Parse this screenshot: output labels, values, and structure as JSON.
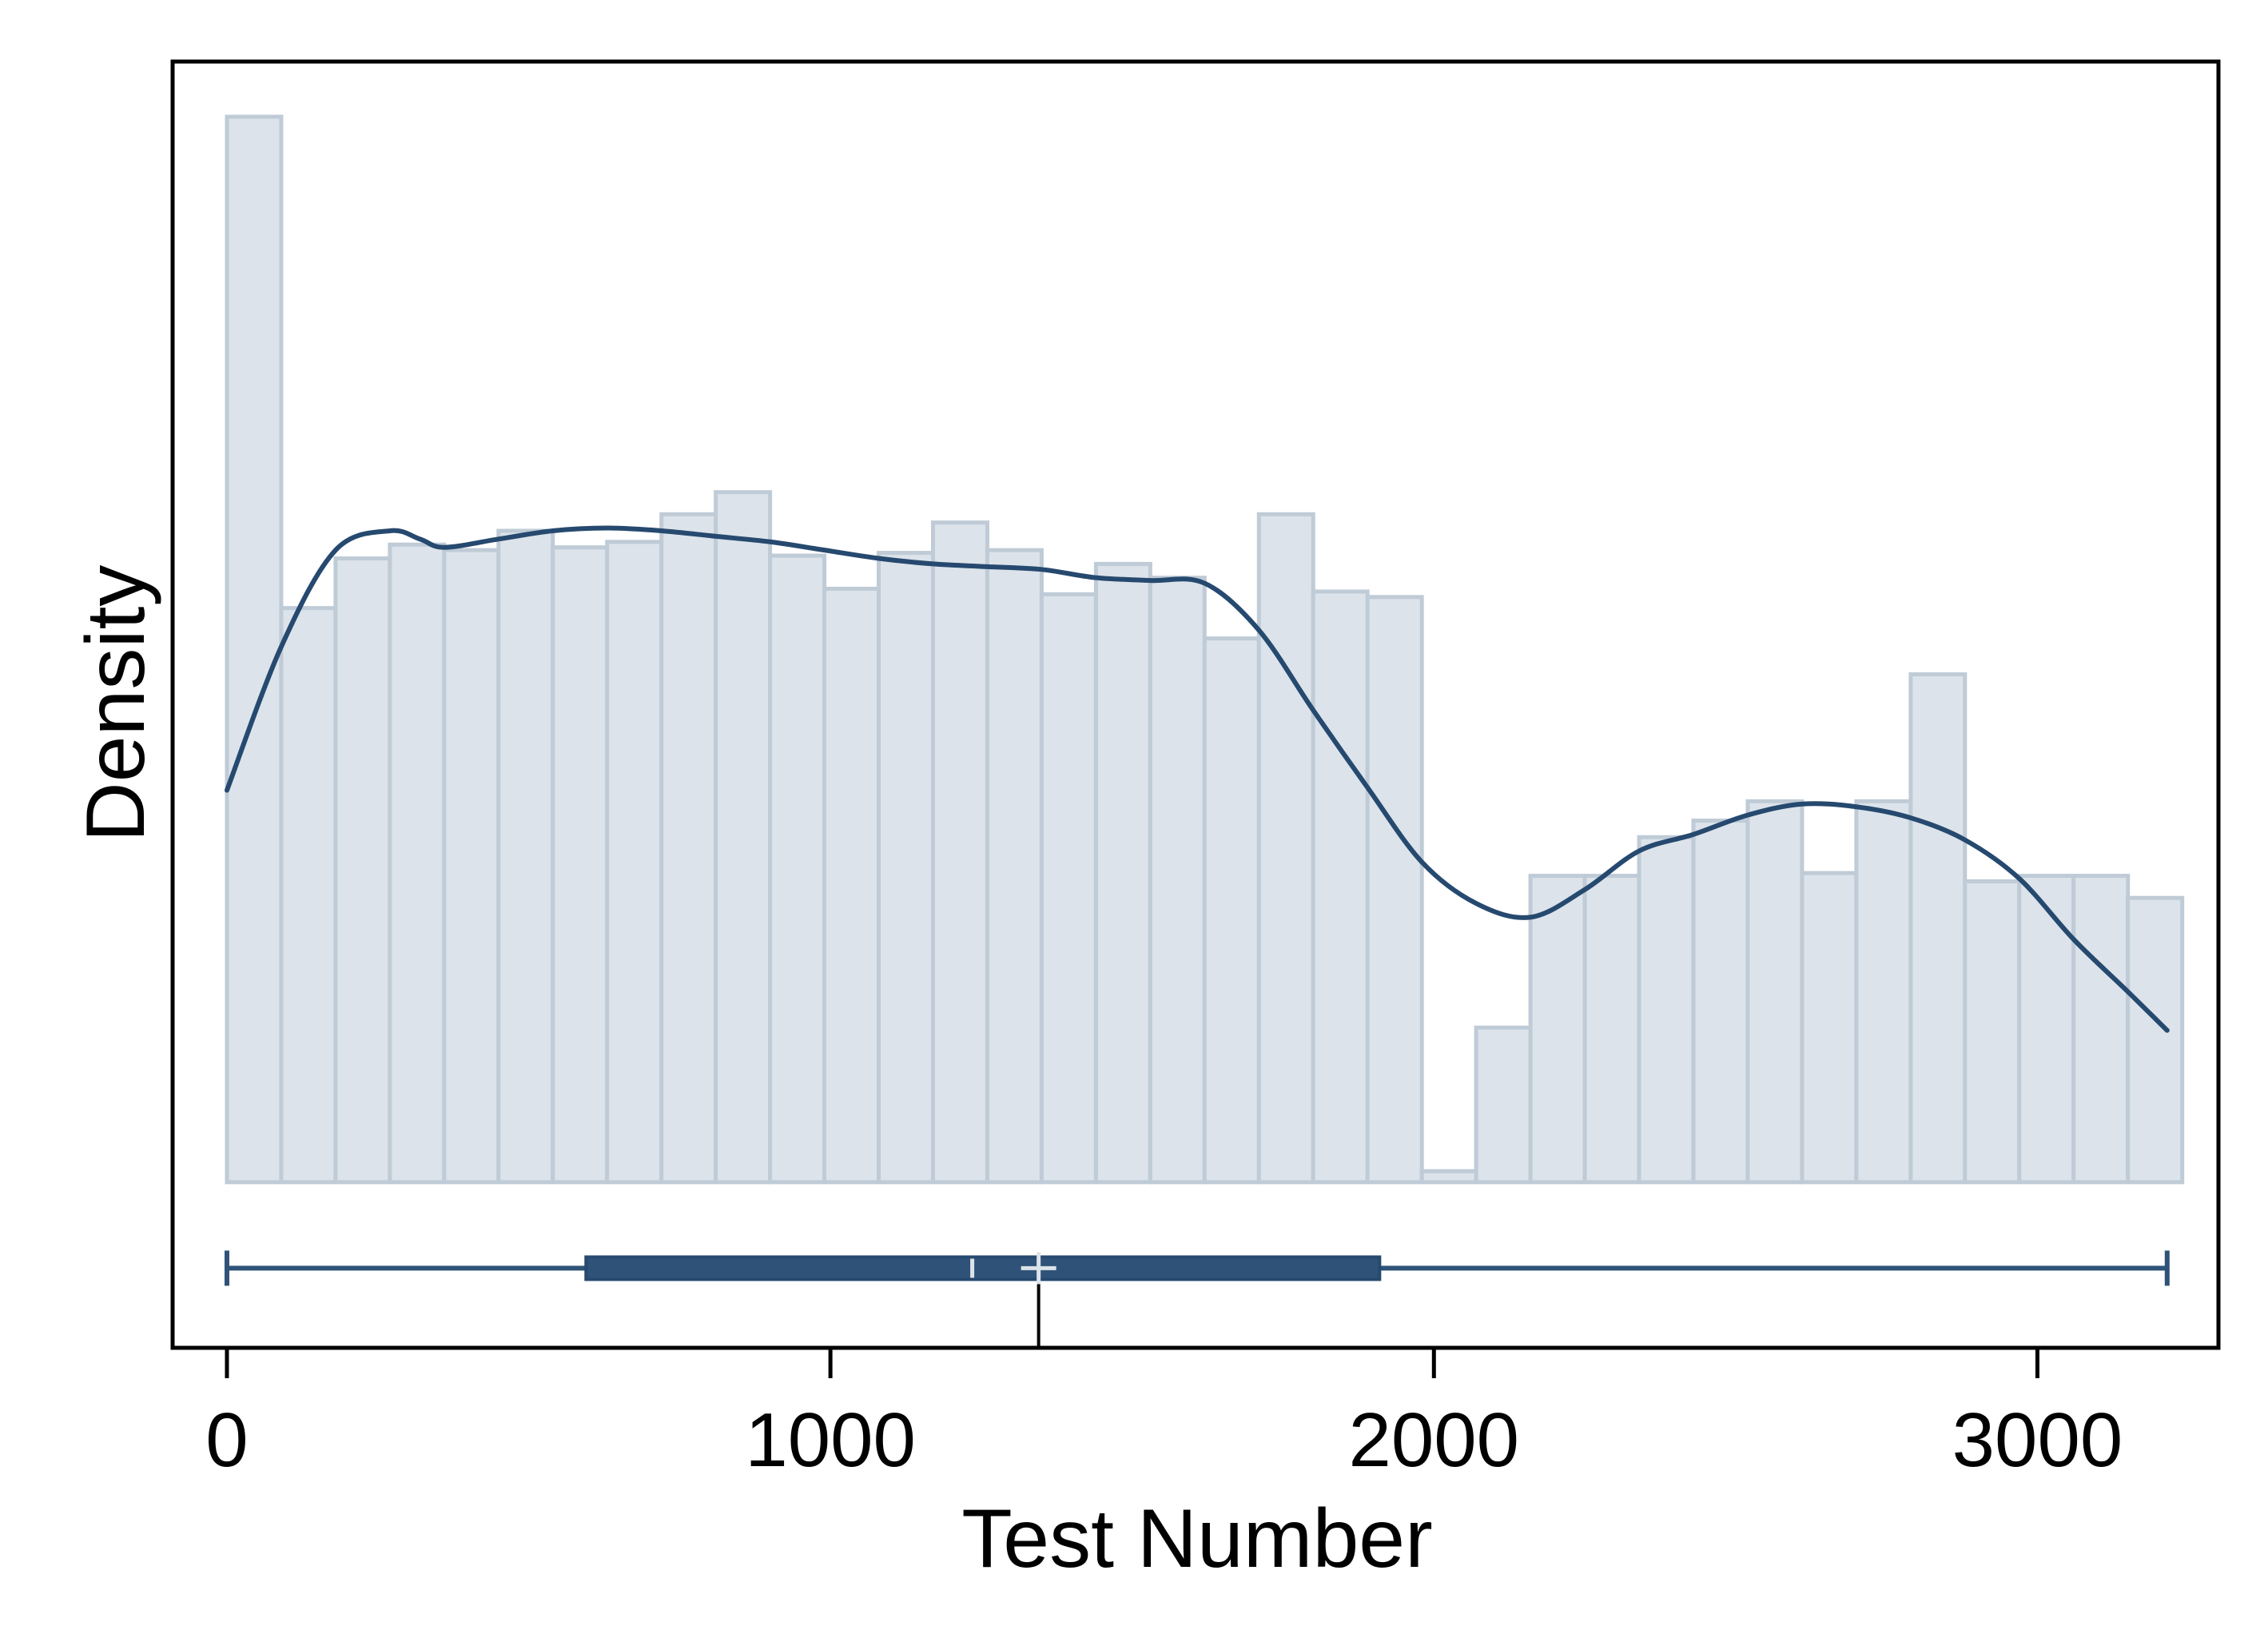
{
  "chart_data": {
    "type": "histogram",
    "title": "",
    "xlabel": "Test Number",
    "ylabel": "Density",
    "xlim": [
      -90,
      3300
    ],
    "ylim": [
      -6e-05,
      0.000406
    ],
    "x_ticks": [
      0,
      1000,
      2000,
      3000
    ],
    "y_ticks": [],
    "grid": false,
    "legend": "none",
    "colors": {
      "bar_fill": "#dce3ea",
      "bar_stroke": "#bfcbd6",
      "kde": "#26496f",
      "box": "#2f5378",
      "box_marker": "#dce3ea",
      "frame": "#000000"
    },
    "bins": {
      "edges": [
        0,
        90,
        180,
        270,
        360,
        450,
        540,
        630,
        720,
        810,
        900,
        990,
        1080,
        1170,
        1260,
        1350,
        1440,
        1530,
        1620,
        1710,
        1800,
        1890,
        1980,
        2070,
        2160,
        2250,
        2340,
        2430,
        2520,
        2610,
        2700,
        2790,
        2880,
        2970,
        3060,
        3150,
        3240
      ],
      "density": [
        0.000386,
        0.000208,
        0.000226,
        0.000231,
        0.000229,
        0.000236,
        0.00023,
        0.000232,
        0.000242,
        0.00025,
        0.000227,
        0.000215,
        0.000228,
        0.000239,
        0.000229,
        0.000213,
        0.000224,
        0.000219,
        0.000197,
        0.000242,
        0.000214,
        0.000212,
        4e-06,
        5.6e-05,
        0.000111,
        0.000111,
        0.000125,
        0.000131,
        0.000138,
        0.000112,
        0.000138,
        0.000184,
        0.000109,
        0.000111,
        0.000111,
        0.000103
      ]
    },
    "kde": {
      "x": [
        0,
        90,
        180,
        270,
        320,
        360,
        450,
        540,
        630,
        720,
        810,
        900,
        990,
        1080,
        1170,
        1260,
        1350,
        1440,
        1530,
        1620,
        1710,
        1800,
        1890,
        1980,
        2070,
        2160,
        2250,
        2340,
        2430,
        2520,
        2610,
        2700,
        2790,
        2880,
        2970,
        3060,
        3150,
        3215
      ],
      "y": [
        0.000142,
        0.000194,
        0.000229,
        0.000236,
        0.000233,
        0.00023,
        0.000233,
        0.000236,
        0.000237,
        0.000236,
        0.000234,
        0.000232,
        0.000229,
        0.000226,
        0.000224,
        0.000223,
        0.000222,
        0.000219,
        0.000218,
        0.000217,
        0.0002,
        0.000171,
        0.000143,
        0.000116,
        0.000101,
        9.6e-05,
        0.000106,
        0.00012,
        0.000126,
        0.000133,
        0.000137,
        0.000136,
        0.000132,
        0.000124,
        0.00011,
        8.8e-05,
        6.9e-05,
        5.5e-05
      ]
    },
    "boxplot": {
      "min": 0,
      "q1": 595,
      "median": 1235,
      "mean": 1345,
      "q3": 1910,
      "max": 3215
    }
  }
}
